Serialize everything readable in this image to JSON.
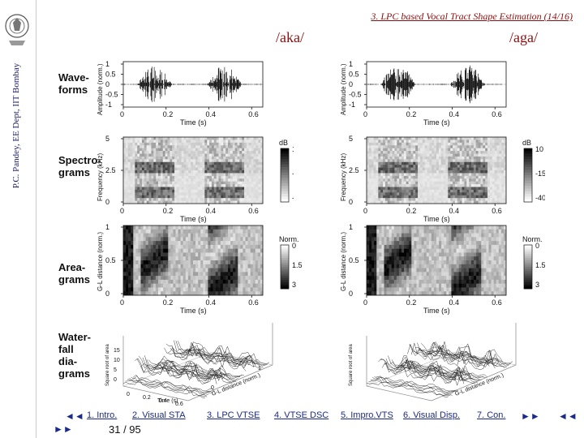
{
  "sidebar": {
    "vertical_text": "P.C. Pandey, EE Dept, IIT Bombay"
  },
  "header": {
    "title": "3. LPC based Vocal Tract Shape Estimation (14/16)"
  },
  "words": {
    "left": "/aka/",
    "right": "/aga/"
  },
  "row_labels": {
    "waveforms": [
      "Wave-",
      "forms"
    ],
    "spectrograms": [
      "Spectro-",
      "grams"
    ],
    "areagrams": [
      "Area-",
      "grams"
    ],
    "waterfall": [
      "Water-",
      "fall",
      "dia-",
      "grams"
    ]
  },
  "panels": {
    "waveform": {
      "ylabel": "Amplitude (norm.)",
      "xlabel": "Time (s)",
      "yticks": [
        "1",
        "0.5",
        "0",
        "-0.5",
        "-1"
      ],
      "xticks": [
        "0",
        "0.2",
        "0.4",
        "0.6"
      ]
    },
    "spectrogram": {
      "ylabel": "Frequency (kHz)",
      "xlabel": "Time (s)",
      "yticks": [
        "5",
        "2.5",
        "0"
      ],
      "xticks": [
        "0",
        "0.2",
        "0.4",
        "0.6"
      ],
      "colorbar_title": "dB",
      "colorbar_ticks": [
        "10",
        "-15",
        "-40"
      ]
    },
    "areagram": {
      "ylabel": "G-L distance (norm.)",
      "xlabel": "Time (s)",
      "yticks": [
        "1",
        "0.5",
        "0"
      ],
      "xticks": [
        "0",
        "0.2",
        "0.4",
        "0.6"
      ],
      "colorbar_title": "Norm.",
      "colorbar_ticks": [
        "0",
        "1.5",
        "3"
      ]
    },
    "waterfall": {
      "zlabel": "Square root of area",
      "xlabel": "Time (s)",
      "ylabel": "G-L distance (norm.)",
      "zticks": [
        "15",
        "10",
        "5",
        "0"
      ],
      "xticks": [
        "0",
        "0.2",
        "0.4",
        "0.6"
      ],
      "yticks": [
        "0",
        "1"
      ]
    }
  },
  "footer": {
    "prev": "◄◄",
    "links": [
      "1. Intro.",
      "2. Visual STA",
      "3. LPC VTSE",
      "4. VTSE DSC",
      "5. Impro.VTS",
      "6. Visual Disp.",
      "7. Con."
    ],
    "next_right": "►►",
    "back_far": "◄◄",
    "next_left": "►►",
    "page": "31 / 95"
  }
}
